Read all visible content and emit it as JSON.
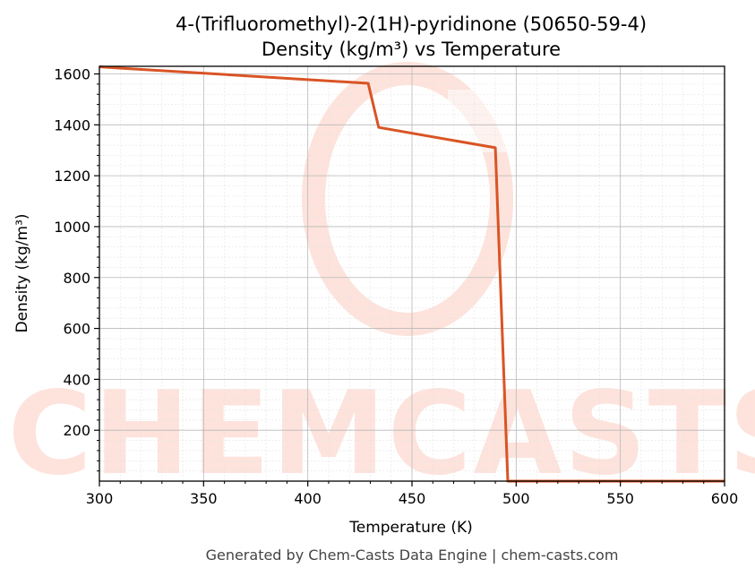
{
  "chart_data": {
    "type": "line",
    "title": "4-(Trifluoromethyl)-2(1H)-pyridinone (50650-59-4)",
    "subtitle": "Density (kg/m³) vs Temperature",
    "xlabel": "Temperature (K)",
    "ylabel": "Density (kg/m³)",
    "xlim": [
      300,
      600
    ],
    "ylim": [
      0,
      1630
    ],
    "x_ticks": [
      300,
      350,
      400,
      450,
      500,
      550,
      600
    ],
    "y_ticks": [
      200,
      400,
      600,
      800,
      1000,
      1200,
      1400,
      1600
    ],
    "grid": true,
    "series": [
      {
        "color": "#d95424",
        "x": [
          300,
          429,
          434,
          490,
          496,
          600
        ],
        "y": [
          1628,
          1563,
          1390,
          1310,
          0,
          0
        ]
      }
    ]
  },
  "watermark": {
    "text": "CHEMCASTS"
  },
  "footer": "Generated by Chem-Casts Data Engine | chem-casts.com"
}
